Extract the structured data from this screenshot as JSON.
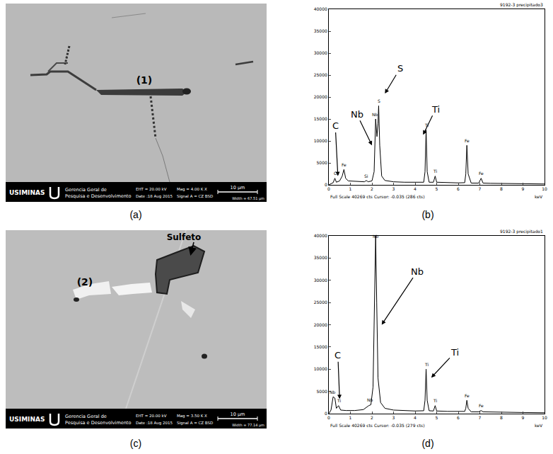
{
  "panel_labels": [
    "(a)",
    "(b)",
    "(c)",
    "(d)"
  ],
  "sem_images": [
    {
      "labels": [
        "(1)"
      ],
      "logo": "USIMINAS",
      "organization": [
        "Gerencia Geral de",
        "Pesquisa e Desenvolvimento"
      ],
      "eht": "EHT = 20.00 kV",
      "mag": "Mag = 4.00 K X",
      "date": "Date :18 Aug 2015",
      "signal": "Signal A = CZ BSD",
      "scale_bar": "10 µm",
      "width": "Width = 67.51 µm"
    },
    {
      "labels": [
        "(2)",
        "Sulfeto"
      ],
      "logo": "USIMINAS",
      "organization": [
        "Gerencia Geral de",
        "Pesquisa e Desenvolvimento"
      ],
      "eht": "EHT = 20.00 kV",
      "mag": "Mag = 3.50 K X",
      "date": "Date :18 Aug 2015",
      "signal": "Signal A = CZ BSD",
      "scale_bar": "10 µm",
      "width": "Width = 77.14 µm"
    }
  ],
  "chart_data": [
    {
      "type": "line",
      "title": "9192-3 precipitado3",
      "footer": "Full Scale 40269 cts Cursor: -0.035 (286 cts)",
      "xlabel": "keV",
      "color": "#000000",
      "grid": false,
      "x": [
        0,
        0.1,
        0.2,
        0.28,
        0.35,
        0.5,
        0.62,
        0.7,
        0.78,
        0.9,
        1.2,
        1.5,
        1.65,
        1.74,
        1.82,
        2.0,
        2.1,
        2.17,
        2.23,
        2.28,
        2.31,
        2.36,
        2.45,
        2.6,
        3.0,
        3.5,
        4.0,
        4.4,
        4.46,
        4.51,
        4.56,
        4.65,
        4.85,
        4.93,
        5.0,
        5.5,
        6.0,
        6.3,
        6.35,
        6.4,
        6.46,
        6.6,
        6.95,
        7.06,
        7.15,
        7.5,
        8,
        9,
        10
      ],
      "values": [
        0,
        200,
        500,
        1500,
        600,
        900,
        2000,
        3500,
        1500,
        900,
        800,
        700,
        700,
        1000,
        700,
        900,
        3000,
        15000,
        11000,
        14000,
        18000,
        9000,
        2000,
        1000,
        700,
        600,
        550,
        600,
        3000,
        12500,
        3000,
        600,
        600,
        2000,
        600,
        500,
        450,
        500,
        2500,
        9000,
        2500,
        400,
        400,
        1500,
        400,
        350,
        300,
        250,
        200
      ],
      "xlim": [
        0,
        10
      ],
      "xticks": [
        0,
        1,
        2,
        3,
        4,
        5,
        6,
        7,
        8,
        9,
        10
      ],
      "ylim": [
        0,
        40000
      ],
      "yticks": [
        0,
        5000,
        10000,
        15000,
        20000,
        25000,
        30000,
        35000,
        40000
      ],
      "peak_labels": [
        {
          "text": "C",
          "x": 0.28,
          "y": 1700
        },
        {
          "text": "Fe",
          "x": 0.7,
          "y": 3700
        },
        {
          "text": "Si",
          "x": 1.74,
          "y": 1200
        },
        {
          "text": "Nb",
          "x": 2.14,
          "y": 15200
        },
        {
          "text": "S",
          "x": 2.33,
          "y": 18200
        },
        {
          "text": "Ti",
          "x": 4.51,
          "y": 12700
        },
        {
          "text": "Ti",
          "x": 4.93,
          "y": 2200
        },
        {
          "text": "Fe",
          "x": 6.4,
          "y": 9200
        },
        {
          "text": "Fe",
          "x": 7.06,
          "y": 1700
        }
      ],
      "annotations": [
        {
          "text": "C",
          "at": [
            0.42,
            2000
          ],
          "from": [
            0.3,
            13400
          ]
        },
        {
          "text": "Nb",
          "at": [
            2.0,
            9000
          ],
          "from": [
            1.3,
            16100
          ]
        },
        {
          "text": "S",
          "at": [
            2.6,
            20800
          ],
          "from": [
            3.3,
            26500
          ]
        },
        {
          "text": "Ti",
          "at": [
            4.37,
            11400
          ],
          "from": [
            4.95,
            17200
          ]
        }
      ]
    },
    {
      "type": "line",
      "title": "9192-3 precipitado1",
      "footer": "Full Scale 40269 cts Cursor: -0.035 (279 cts)",
      "xlabel": "keV",
      "color": "#000000",
      "grid": false,
      "x": [
        0,
        0.1,
        0.2,
        0.28,
        0.35,
        0.45,
        0.55,
        0.8,
        1.2,
        1.6,
        1.85,
        1.95,
        2.05,
        2.12,
        2.17,
        2.22,
        2.28,
        2.4,
        2.6,
        3.0,
        3.5,
        4.0,
        4.4,
        4.46,
        4.51,
        4.56,
        4.65,
        4.85,
        4.93,
        5.0,
        5.5,
        6.0,
        6.3,
        6.35,
        6.4,
        6.46,
        6.6,
        6.95,
        7.06,
        7.15,
        7.5,
        8,
        9,
        10
      ],
      "values": [
        0,
        800,
        3800,
        3500,
        1200,
        1800,
        800,
        700,
        700,
        900,
        1800,
        2000,
        6000,
        25000,
        40000,
        25000,
        8000,
        2500,
        1200,
        800,
        650,
        600,
        650,
        3000,
        10000,
        3000,
        650,
        600,
        1800,
        600,
        500,
        450,
        500,
        1200,
        3000,
        1200,
        400,
        400,
        700,
        400,
        350,
        300,
        250,
        200
      ],
      "xlim": [
        0,
        10
      ],
      "xticks": [
        0,
        1,
        2,
        3,
        4,
        5,
        6,
        7,
        8,
        9,
        10
      ],
      "ylim": [
        0,
        40000
      ],
      "yticks": [
        0,
        5000,
        10000,
        15000,
        20000,
        25000,
        30000,
        35000,
        40000
      ],
      "peak_labels": [
        {
          "text": "Nb",
          "x": 0.18,
          "y": 4000
        },
        {
          "text": "Ti",
          "x": 0.45,
          "y": 2000
        },
        {
          "text": "Nb",
          "x": 1.9,
          "y": 2200
        },
        {
          "text": "Nb",
          "x": 2.17,
          "y": 39000
        },
        {
          "text": "Ti",
          "x": 4.51,
          "y": 10200
        },
        {
          "text": "Ti",
          "x": 4.93,
          "y": 2000
        },
        {
          "text": "Fe",
          "x": 6.4,
          "y": 3200
        },
        {
          "text": "Fe",
          "x": 7.06,
          "y": 900
        }
      ],
      "annotations": [
        {
          "text": "C",
          "at": [
            0.5,
            3300
          ],
          "from": [
            0.42,
            13100
          ]
        },
        {
          "text": "Nb",
          "at": [
            2.45,
            20000
          ],
          "from": [
            4.1,
            32000
          ]
        },
        {
          "text": "Ti",
          "at": [
            4.75,
            8100
          ],
          "from": [
            5.85,
            13800
          ]
        }
      ]
    }
  ]
}
